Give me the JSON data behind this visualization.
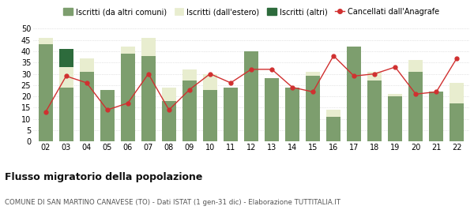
{
  "years": [
    "02",
    "03",
    "04",
    "05",
    "06",
    "07",
    "08",
    "09",
    "10",
    "11",
    "12",
    "13",
    "14",
    "15",
    "16",
    "17",
    "18",
    "19",
    "20",
    "21",
    "22"
  ],
  "iscritti_comuni": [
    43,
    24,
    31,
    23,
    39,
    38,
    18,
    27,
    23,
    24,
    40,
    28,
    24,
    29,
    11,
    42,
    27,
    20,
    31,
    22,
    17
  ],
  "iscritti_estero": [
    3,
    9,
    6,
    0,
    3,
    8,
    6,
    5,
    7,
    0,
    0,
    0,
    0,
    2,
    3,
    0,
    4,
    1,
    5,
    0,
    9
  ],
  "iscritti_altri": [
    0,
    8,
    0,
    0,
    0,
    0,
    0,
    0,
    0,
    0,
    0,
    0,
    0,
    0,
    0,
    0,
    0,
    0,
    0,
    0,
    0
  ],
  "cancellati": [
    13,
    29,
    26,
    14,
    17,
    30,
    14,
    23,
    30,
    26,
    32,
    32,
    24,
    22,
    38,
    29,
    30,
    33,
    21,
    22,
    37
  ],
  "color_comuni": "#7d9e6e",
  "color_estero": "#e8edcf",
  "color_altri": "#2d6b3c",
  "color_cancellati": "#d03030",
  "color_grid": "#cccccc",
  "bg_color": "#ffffff",
  "title": "Flusso migratorio della popolazione",
  "subtitle": "COMUNE DI SAN MARTINO CANAVESE (TO) - Dati ISTAT (1 gen-31 dic) - Elaborazione TUTTITALIA.IT",
  "legend_labels": [
    "Iscritti (da altri comuni)",
    "Iscritti (dall'estero)",
    "Iscritti (altri)",
    "Cancellati dall'Anagrafe"
  ],
  "ylim": [
    0,
    50
  ],
  "yticks": [
    0,
    5,
    10,
    15,
    20,
    25,
    30,
    35,
    40,
    45,
    50
  ]
}
